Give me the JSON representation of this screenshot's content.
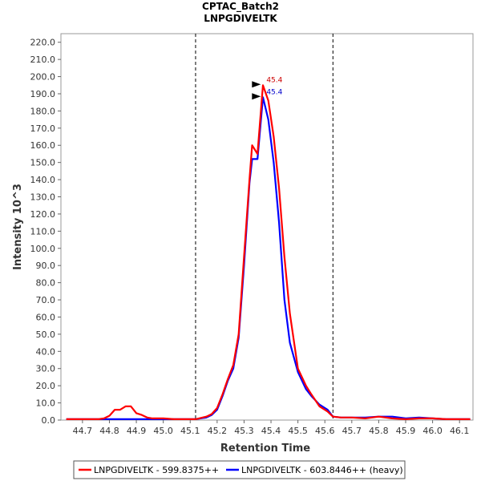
{
  "chart_data": {
    "type": "line",
    "title": "CPTAC_Batch2",
    "subtitle": "LNPGDIVELTK",
    "xlabel": "Retention Time",
    "ylabel": "Intensity 10^3",
    "xlim": [
      44.62,
      46.15
    ],
    "ylim": [
      0,
      225
    ],
    "xticks": [
      "44.7",
      "44.8",
      "44.9",
      "45.0",
      "45.1",
      "45.2",
      "45.3",
      "45.4",
      "45.5",
      "45.6",
      "45.7",
      "45.8",
      "45.9",
      "46.0",
      "46.1"
    ],
    "yticks": [
      "0.0",
      "10.0",
      "20.0",
      "30.0",
      "40.0",
      "50.0",
      "60.0",
      "70.0",
      "80.0",
      "90.0",
      "100.0",
      "110.0",
      "120.0",
      "130.0",
      "140.0",
      "150.0",
      "160.0",
      "170.0",
      "180.0",
      "190.0",
      "200.0",
      "210.0",
      "220.0"
    ],
    "boundaries": [
      45.12,
      45.63
    ],
    "series": [
      {
        "name": "LNPGDIVELTK - 599.8375++",
        "color": "#ff0000",
        "x": [
          44.64,
          44.68,
          44.72,
          44.76,
          44.78,
          44.8,
          44.82,
          44.84,
          44.86,
          44.88,
          44.9,
          44.92,
          44.94,
          44.96,
          44.98,
          45.0,
          45.04,
          45.08,
          45.12,
          45.16,
          45.18,
          45.2,
          45.22,
          45.24,
          45.26,
          45.28,
          45.3,
          45.32,
          45.33,
          45.35,
          45.37,
          45.39,
          45.41,
          45.43,
          45.45,
          45.47,
          45.5,
          45.53,
          45.55,
          45.58,
          45.61,
          45.63,
          45.66,
          45.7,
          45.75,
          45.8,
          45.85,
          45.9,
          45.95,
          46.0,
          46.05,
          46.1,
          46.14
        ],
        "y": [
          0.5,
          0.5,
          0.5,
          0.5,
          1,
          2.5,
          6,
          6,
          8,
          8,
          4,
          3,
          1.5,
          1,
          1,
          1,
          0.5,
          0.5,
          0.5,
          2,
          3.5,
          7,
          15,
          24,
          32,
          50,
          95,
          140,
          160,
          155,
          195,
          186,
          165,
          135,
          95,
          62,
          30,
          20,
          15,
          8,
          5,
          2,
          1.5,
          1.5,
          1,
          2,
          1,
          0.5,
          1,
          1,
          0.5,
          0.5,
          0.5
        ]
      },
      {
        "name": "LNPGDIVELTK - 603.8446++ (heavy)",
        "color": "#0000ff",
        "x": [
          44.64,
          44.68,
          44.72,
          44.76,
          44.8,
          44.84,
          44.88,
          44.92,
          44.96,
          45.0,
          45.04,
          45.08,
          45.12,
          45.16,
          45.18,
          45.2,
          45.22,
          45.24,
          45.26,
          45.28,
          45.3,
          45.32,
          45.33,
          45.35,
          45.37,
          45.39,
          45.41,
          45.43,
          45.45,
          45.47,
          45.5,
          45.53,
          45.55,
          45.58,
          45.61,
          45.63,
          45.66,
          45.7,
          45.75,
          45.8,
          45.85,
          45.9,
          45.95,
          46.0,
          46.05,
          46.1,
          46.14
        ],
        "y": [
          0.5,
          0.5,
          0.5,
          0.5,
          0.5,
          0.5,
          0.5,
          0.5,
          0.5,
          0.5,
          0.5,
          0.5,
          0.5,
          1.5,
          3,
          6,
          14,
          23,
          30,
          48,
          90,
          138,
          152,
          152,
          188,
          175,
          150,
          115,
          70,
          45,
          28,
          18,
          14,
          9,
          6,
          2,
          1.5,
          1.5,
          1.5,
          2,
          2,
          1,
          1.5,
          1,
          0.5,
          0.5,
          0.5
        ]
      }
    ],
    "annotations": [
      {
        "text": "45.4",
        "x": 45.38,
        "y": 195,
        "color": "#cc0000",
        "series": 0
      },
      {
        "text": "45.4",
        "x": 45.38,
        "y": 188,
        "color": "#0000cc",
        "series": 1
      }
    ],
    "legend_placement": "bottom-center"
  }
}
